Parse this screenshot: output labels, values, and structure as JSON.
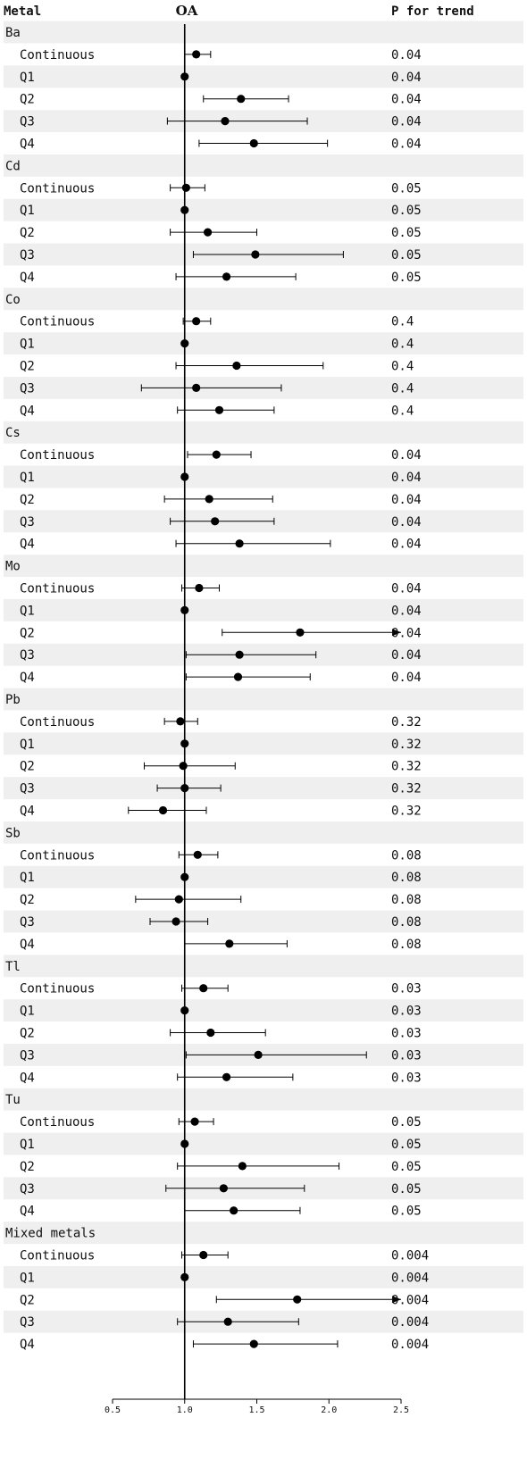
{
  "chart_data": {
    "type": "forest",
    "headers": {
      "metal": "Metal",
      "outcome": "OA",
      "trend": "P for trend"
    },
    "xlim": [
      0.5,
      2.5
    ],
    "reference": 1.0,
    "ticks": [
      "0.5",
      "1.0",
      "1.5",
      "2.0",
      "2.5"
    ],
    "tick_values": [
      0.5,
      1.0,
      1.5,
      2.0,
      2.5
    ],
    "groups": [
      {
        "name": "Ba",
        "rows": [
          {
            "label": "Continuous",
            "est": 1.08,
            "lo": 1.0,
            "hi": 1.18,
            "p": "0.04"
          },
          {
            "label": "Q1",
            "est": 1.0,
            "lo": 1.0,
            "hi": 1.0,
            "p": "0.04"
          },
          {
            "label": "Q2",
            "est": 1.39,
            "lo": 1.13,
            "hi": 1.72,
            "p": "0.04"
          },
          {
            "label": "Q3",
            "est": 1.28,
            "lo": 0.88,
            "hi": 1.85,
            "p": "0.04"
          },
          {
            "label": "Q4",
            "est": 1.48,
            "lo": 1.1,
            "hi": 1.99,
            "p": "0.04"
          }
        ]
      },
      {
        "name": "Cd",
        "rows": [
          {
            "label": "Continuous",
            "est": 1.01,
            "lo": 0.9,
            "hi": 1.14,
            "p": "0.05"
          },
          {
            "label": "Q1",
            "est": 1.0,
            "lo": 1.0,
            "hi": 1.0,
            "p": "0.05"
          },
          {
            "label": "Q2",
            "est": 1.16,
            "lo": 0.9,
            "hi": 1.5,
            "p": "0.05"
          },
          {
            "label": "Q3",
            "est": 1.49,
            "lo": 1.06,
            "hi": 2.1,
            "p": "0.05"
          },
          {
            "label": "Q4",
            "est": 1.29,
            "lo": 0.94,
            "hi": 1.77,
            "p": "0.05"
          }
        ]
      },
      {
        "name": "Co",
        "rows": [
          {
            "label": "Continuous",
            "est": 1.08,
            "lo": 0.99,
            "hi": 1.18,
            "p": "0.4"
          },
          {
            "label": "Q1",
            "est": 1.0,
            "lo": 1.0,
            "hi": 1.0,
            "p": "0.4"
          },
          {
            "label": "Q2",
            "est": 1.36,
            "lo": 0.94,
            "hi": 1.96,
            "p": "0.4"
          },
          {
            "label": "Q3",
            "est": 1.08,
            "lo": 0.7,
            "hi": 1.67,
            "p": "0.4"
          },
          {
            "label": "Q4",
            "est": 1.24,
            "lo": 0.95,
            "hi": 1.62,
            "p": "0.4"
          }
        ]
      },
      {
        "name": "Cs",
        "rows": [
          {
            "label": "Continuous",
            "est": 1.22,
            "lo": 1.02,
            "hi": 1.46,
            "p": "0.04"
          },
          {
            "label": "Q1",
            "est": 1.0,
            "lo": 1.0,
            "hi": 1.0,
            "p": "0.04"
          },
          {
            "label": "Q2",
            "est": 1.17,
            "lo": 0.86,
            "hi": 1.61,
            "p": "0.04"
          },
          {
            "label": "Q3",
            "est": 1.21,
            "lo": 0.9,
            "hi": 1.62,
            "p": "0.04"
          },
          {
            "label": "Q4",
            "est": 1.38,
            "lo": 0.94,
            "hi": 2.01,
            "p": "0.04"
          }
        ]
      },
      {
        "name": "Mo",
        "rows": [
          {
            "label": "Continuous",
            "est": 1.1,
            "lo": 0.98,
            "hi": 1.24,
            "p": "0.04"
          },
          {
            "label": "Q1",
            "est": 1.0,
            "lo": 1.0,
            "hi": 1.0,
            "p": "0.04"
          },
          {
            "label": "Q2",
            "est": 1.8,
            "lo": 1.26,
            "hi": 2.5,
            "p": "0.04",
            "arrow": true
          },
          {
            "label": "Q3",
            "est": 1.38,
            "lo": 1.01,
            "hi": 1.91,
            "p": "0.04"
          },
          {
            "label": "Q4",
            "est": 1.37,
            "lo": 1.01,
            "hi": 1.87,
            "p": "0.04"
          }
        ]
      },
      {
        "name": "Pb",
        "rows": [
          {
            "label": "Continuous",
            "est": 0.97,
            "lo": 0.86,
            "hi": 1.09,
            "p": "0.32"
          },
          {
            "label": "Q1",
            "est": 1.0,
            "lo": 1.0,
            "hi": 1.0,
            "p": "0.32"
          },
          {
            "label": "Q2",
            "est": 0.99,
            "lo": 0.72,
            "hi": 1.35,
            "p": "0.32"
          },
          {
            "label": "Q3",
            "est": 1.0,
            "lo": 0.81,
            "hi": 1.25,
            "p": "0.32"
          },
          {
            "label": "Q4",
            "est": 0.85,
            "lo": 0.61,
            "hi": 1.15,
            "p": "0.32"
          }
        ]
      },
      {
        "name": "Sb",
        "rows": [
          {
            "label": "Continuous",
            "est": 1.09,
            "lo": 0.96,
            "hi": 1.23,
            "p": "0.08"
          },
          {
            "label": "Q1",
            "est": 1.0,
            "lo": 1.0,
            "hi": 1.0,
            "p": "0.08"
          },
          {
            "label": "Q2",
            "est": 0.96,
            "lo": 0.66,
            "hi": 1.39,
            "p": "0.08"
          },
          {
            "label": "Q3",
            "est": 0.94,
            "lo": 0.76,
            "hi": 1.16,
            "p": "0.08"
          },
          {
            "label": "Q4",
            "est": 1.31,
            "lo": 1.0,
            "hi": 1.71,
            "p": "0.08"
          }
        ]
      },
      {
        "name": "Tl",
        "rows": [
          {
            "label": "Continuous",
            "est": 1.13,
            "lo": 0.98,
            "hi": 1.3,
            "p": "0.03"
          },
          {
            "label": "Q1",
            "est": 1.0,
            "lo": 1.0,
            "hi": 1.0,
            "p": "0.03"
          },
          {
            "label": "Q2",
            "est": 1.18,
            "lo": 0.9,
            "hi": 1.56,
            "p": "0.03"
          },
          {
            "label": "Q3",
            "est": 1.51,
            "lo": 1.01,
            "hi": 2.26,
            "p": "0.03"
          },
          {
            "label": "Q4",
            "est": 1.29,
            "lo": 0.95,
            "hi": 1.75,
            "p": "0.03"
          }
        ]
      },
      {
        "name": "Tu",
        "rows": [
          {
            "label": "Continuous",
            "est": 1.07,
            "lo": 0.96,
            "hi": 1.2,
            "p": "0.05"
          },
          {
            "label": "Q1",
            "est": 1.0,
            "lo": 1.0,
            "hi": 1.0,
            "p": "0.05"
          },
          {
            "label": "Q2",
            "est": 1.4,
            "lo": 0.95,
            "hi": 2.07,
            "p": "0.05"
          },
          {
            "label": "Q3",
            "est": 1.27,
            "lo": 0.87,
            "hi": 1.83,
            "p": "0.05"
          },
          {
            "label": "Q4",
            "est": 1.34,
            "lo": 1.0,
            "hi": 1.8,
            "p": "0.05"
          }
        ]
      },
      {
        "name": "Mixed metals",
        "rows": [
          {
            "label": "Continuous",
            "est": 1.13,
            "lo": 0.98,
            "hi": 1.3,
            "p": "0.004"
          },
          {
            "label": "Q1",
            "est": 1.0,
            "lo": 1.0,
            "hi": 1.0,
            "p": "0.004"
          },
          {
            "label": "Q2",
            "est": 1.78,
            "lo": 1.22,
            "hi": 2.5,
            "p": "0.004",
            "arrow": true
          },
          {
            "label": "Q3",
            "est": 1.3,
            "lo": 0.95,
            "hi": 1.79,
            "p": "0.004"
          },
          {
            "label": "Q4",
            "est": 1.48,
            "lo": 1.06,
            "hi": 2.06,
            "p": "0.004"
          }
        ]
      }
    ]
  }
}
